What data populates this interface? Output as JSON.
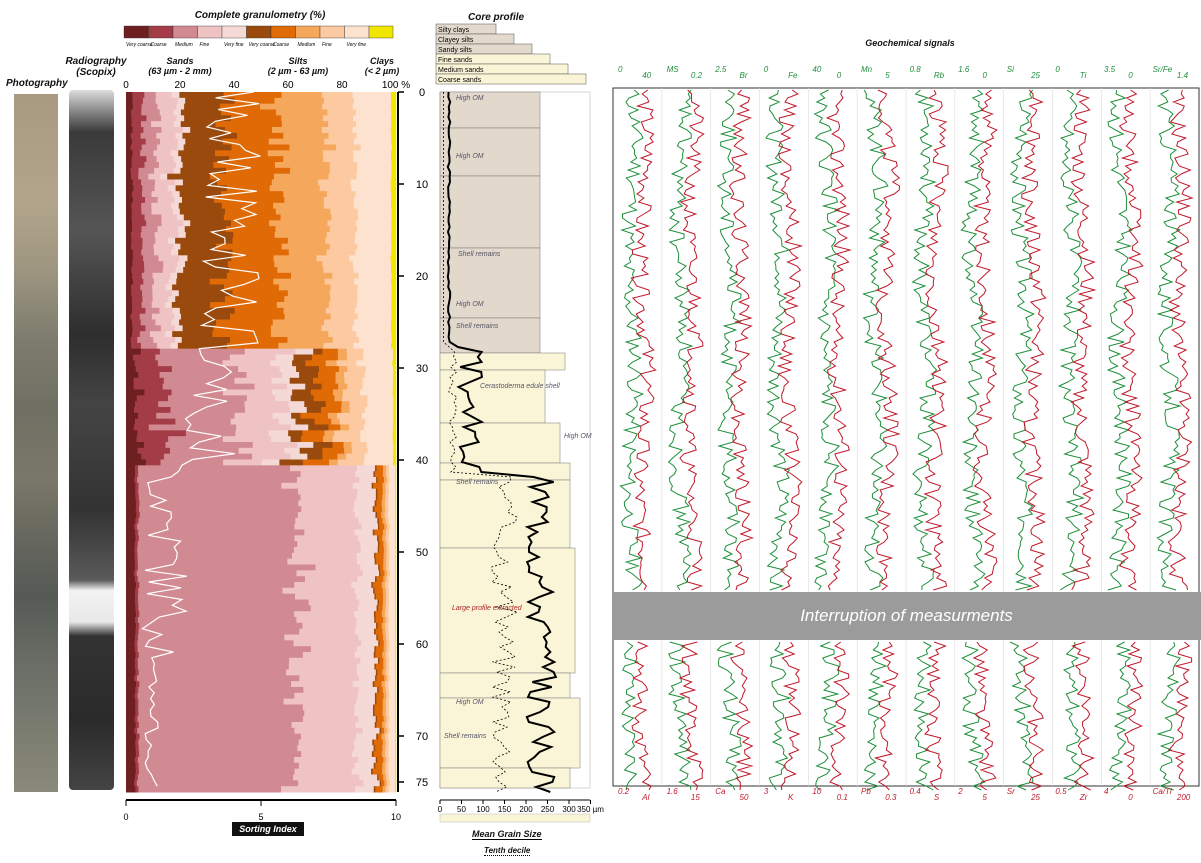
{
  "granulometry": {
    "title": "Complete granulometry (%)",
    "legend_colors": [
      "#6e1f1f",
      "#a33c46",
      "#d28a92",
      "#efc3c3",
      "#f4d9d6",
      "#9a4a0c",
      "#e06a05",
      "#f5a75c",
      "#fcc9a0",
      "#fde3cf",
      "#f0e600"
    ],
    "legend_labels": [
      "Very coarse",
      "Coarse",
      "Medium",
      "Fine",
      "Very fine",
      "Very coarse",
      "Coarse",
      "Medium",
      "Fine",
      "Very fine"
    ],
    "group_sands": "Sands\n(63 µm - 2 mm)",
    "group_silts": "Silts\n(2 µm - 63 µm)",
    "group_clays": "Clays\n(< 2 µm)",
    "top_ticks": [
      "0",
      "20",
      "40",
      "60",
      "80",
      "100 %"
    ],
    "depth_ticks": [
      "0",
      "10",
      "20",
      "30",
      "40",
      "50",
      "60",
      "70",
      "75"
    ],
    "bottom_ticks": [
      "0",
      "5",
      "10"
    ],
    "sorting_label": "Sorting Index"
  },
  "photography_label": "Photography",
  "radiography_label": "Radiography\n(Scopix)",
  "core_profile": {
    "title": "Core profile",
    "legend": [
      "Silty clays",
      "Clayey silts",
      "Sandy silts",
      "Fine sands",
      "Medium sands",
      "Coarse sands"
    ],
    "annotations": [
      "High OM",
      "High OM",
      "Shell remains",
      "High OM",
      "Shell remains",
      "Cerastoderma edule shell",
      "High OM",
      "Shell remains",
      "Large profile extracted",
      "High OM",
      "Shell remains"
    ],
    "x_ticks": [
      "0",
      "50",
      "100",
      "150",
      "200",
      "250",
      "300",
      "350 µm"
    ],
    "mean_label": "Mean Grain Size",
    "tenth_label": "Tenth decile"
  },
  "geochem": {
    "title": "Geochemical signals",
    "interruption": "Interruption of measurments",
    "top_green_labels": [
      "0",
      "40",
      "MS",
      "0.2",
      "2.5",
      "Br",
      "0",
      "Fe",
      "40",
      "0",
      "Mn",
      "5",
      "0.8",
      "Rb",
      "1.6",
      "0",
      "Si",
      "25",
      "0",
      "Ti",
      "3.5",
      "0",
      "Sr/Fe",
      "1.4"
    ],
    "bottom_red_labels": [
      "0.2",
      "Al",
      "1.6",
      "15",
      "Ca",
      "50",
      "3",
      "K",
      "10",
      "0.1",
      "Pb",
      "0.3",
      "0.4",
      "S",
      "2",
      "5",
      "Sr",
      "25",
      "0.5",
      "Zr",
      "4",
      "0",
      "Ca/Ti",
      "200"
    ]
  }
}
